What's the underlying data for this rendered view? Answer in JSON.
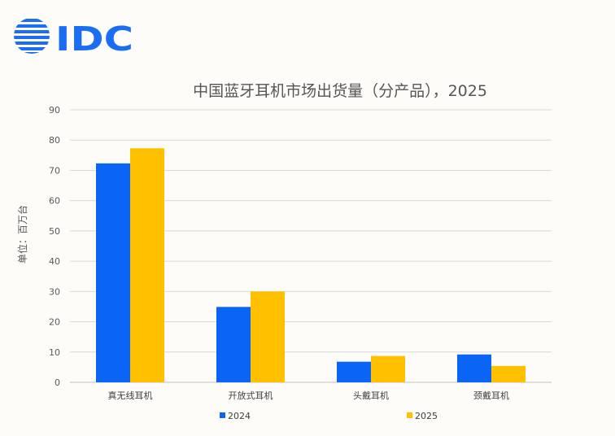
{
  "logo": {
    "text": "IDC",
    "color": "#1b6ef3"
  },
  "chart_data": {
    "type": "bar",
    "title": "中国蓝牙耳机市场出货量（分产品），2025",
    "xlabel": "",
    "ylabel": "单位：百万台",
    "ylim": [
      0,
      90
    ],
    "yticks": [
      0,
      10,
      20,
      30,
      40,
      50,
      60,
      70,
      80,
      90
    ],
    "grid": true,
    "legend_position": "bottom",
    "categories": [
      "真无线耳机",
      "开放式耳机",
      "头戴耳机",
      "颈戴耳机"
    ],
    "series": [
      {
        "name": "2024",
        "color": "#0a64f4",
        "values": [
          72.3,
          24.9,
          6.8,
          9.2
        ]
      },
      {
        "name": "2025",
        "color": "#ffc000",
        "values": [
          77.3,
          30.0,
          8.7,
          5.4
        ]
      }
    ]
  }
}
